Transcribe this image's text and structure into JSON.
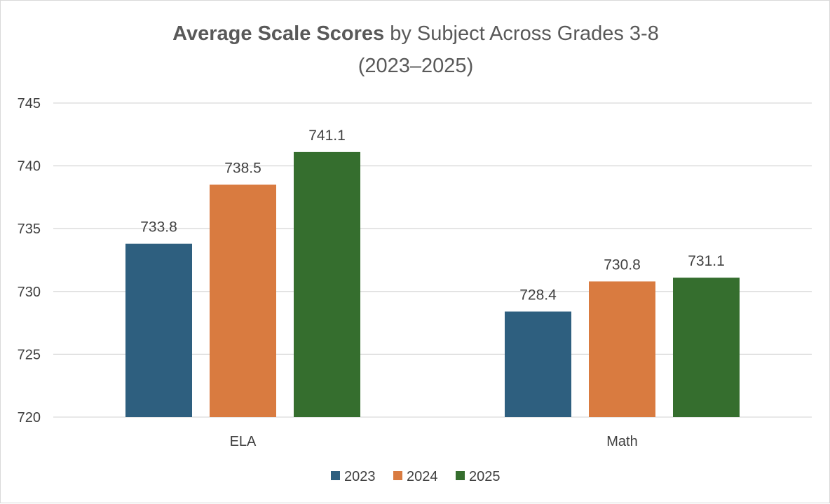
{
  "chart_data": {
    "type": "bar",
    "title_bold": "Average Scale Scores",
    "title_rest": " by Subject Across Grades 3-8",
    "title_line2": "(2023–2025)",
    "categories": [
      "ELA",
      "Math"
    ],
    "series": [
      {
        "name": "2023",
        "color": "#2e5f7f",
        "values": [
          733.8,
          728.4
        ]
      },
      {
        "name": "2024",
        "color": "#d97b40",
        "values": [
          738.5,
          730.8
        ]
      },
      {
        "name": "2025",
        "color": "#356e2e",
        "values": [
          741.1,
          731.1
        ]
      }
    ],
    "ylim": [
      720,
      745
    ],
    "yticks": [
      720,
      725,
      730,
      735,
      740,
      745
    ],
    "xlabel": "",
    "ylabel": "",
    "grid": true,
    "legend_position": "bottom"
  }
}
